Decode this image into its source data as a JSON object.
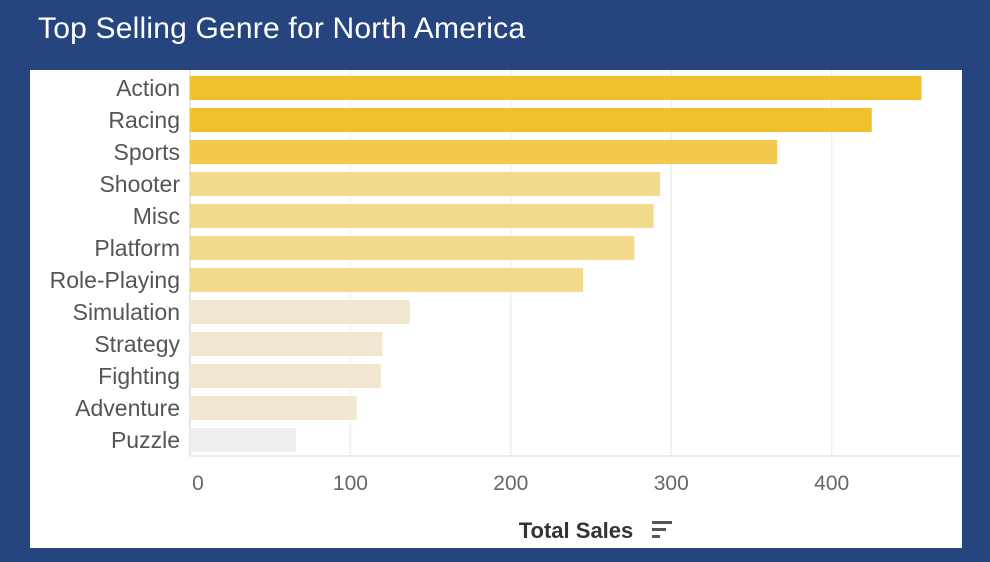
{
  "header": {
    "title": "Top Selling Genre for North America"
  },
  "chart_data": {
    "type": "bar",
    "orientation": "horizontal",
    "title": "Top Selling Genre for North America",
    "xlabel": "Total Sales",
    "ylabel": "",
    "categories": [
      "Action",
      "Racing",
      "Sports",
      "Shooter",
      "Misc",
      "Platform",
      "Role-Playing",
      "Simulation",
      "Strategy",
      "Fighting",
      "Adventure",
      "Puzzle"
    ],
    "values": [
      456,
      425,
      366,
      293,
      289,
      277,
      245,
      137,
      120,
      119,
      104,
      66
    ],
    "xlim": [
      0,
      480
    ],
    "xticks": [
      "0",
      "100",
      "200",
      "300",
      "400"
    ],
    "grid": "vertical",
    "sorted": "descending",
    "colors": {
      "high": "#f0c12a",
      "mid_high": "#f2c94a",
      "mid": "#f2d98b",
      "low": "#f2e8d2",
      "lowest": "#eeeeee",
      "background": "#26457f"
    }
  }
}
